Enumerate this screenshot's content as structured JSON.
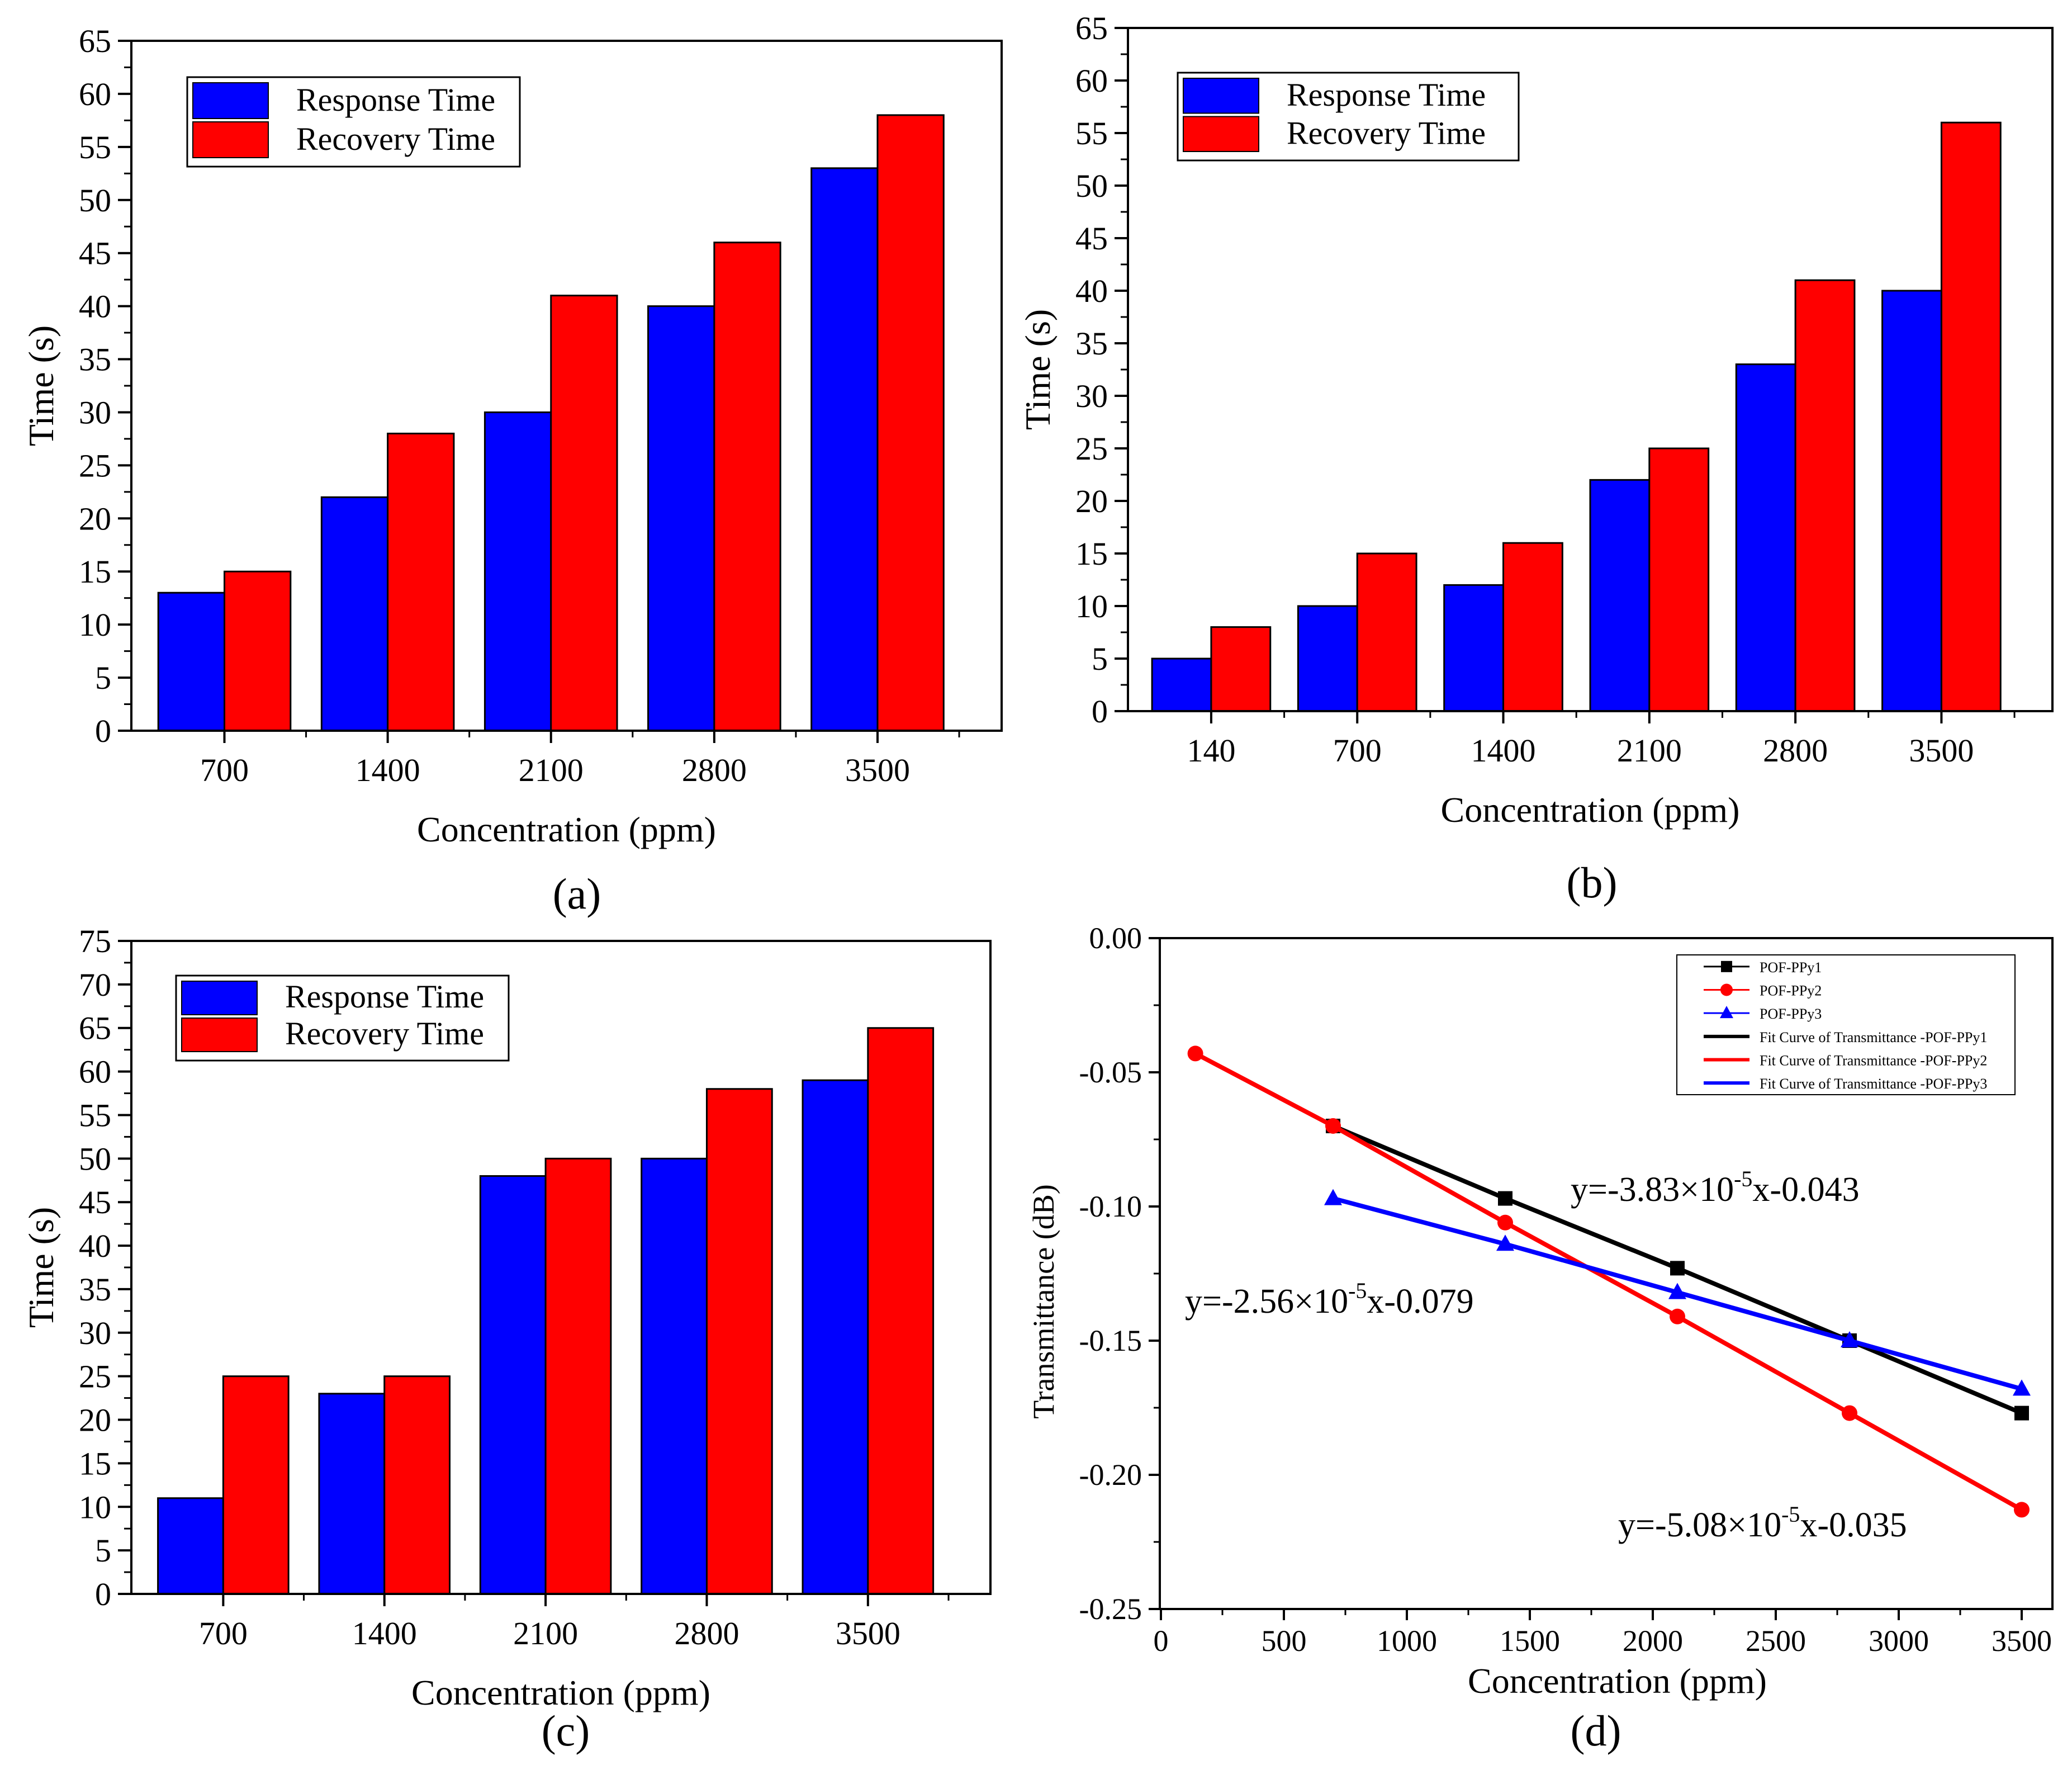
{
  "chart_data": [
    {
      "panel_label": "(a)",
      "type": "bar",
      "categories": [
        "700",
        "1400",
        "2100",
        "2800",
        "3500"
      ],
      "series": [
        {
          "name": "Response Time",
          "color": "#0000ff",
          "values": [
            13,
            22,
            30,
            40,
            53
          ]
        },
        {
          "name": "Recovery Time",
          "color": "#ff0000",
          "values": [
            15,
            28,
            41,
            46,
            58
          ]
        }
      ],
      "xlabel": "Concentration (ppm)",
      "ylabel": "Time (s)",
      "ylim": [
        0,
        65
      ],
      "ytick_step": 5,
      "yticks": [
        "0",
        "5",
        "10",
        "15",
        "20",
        "25",
        "30",
        "35",
        "40",
        "45",
        "50",
        "55",
        "60",
        "65"
      ],
      "legend": "top-left"
    },
    {
      "panel_label": "(b)",
      "type": "bar",
      "categories": [
        "140",
        "700",
        "1400",
        "2100",
        "2800",
        "3500"
      ],
      "series": [
        {
          "name": "Response Time",
          "color": "#0000ff",
          "values": [
            5,
            10,
            12,
            22,
            33,
            40
          ]
        },
        {
          "name": "Recovery Time",
          "color": "#ff0000",
          "values": [
            8,
            15,
            16,
            25,
            41,
            56
          ]
        }
      ],
      "xlabel": "Concentration (ppm)",
      "ylabel": "Time (s)",
      "ylim": [
        0,
        65
      ],
      "ytick_step": 5,
      "yticks": [
        "0",
        "5",
        "10",
        "15",
        "20",
        "25",
        "30",
        "35",
        "40",
        "45",
        "50",
        "55",
        "60",
        "65"
      ],
      "legend": "top-left"
    },
    {
      "panel_label": "(c)",
      "type": "bar",
      "categories": [
        "700",
        "1400",
        "2100",
        "2800",
        "3500"
      ],
      "series": [
        {
          "name": "Response Time",
          "color": "#0000ff",
          "values": [
            11,
            23,
            48,
            50,
            59
          ]
        },
        {
          "name": "Recovery Time",
          "color": "#ff0000",
          "values": [
            25,
            25,
            50,
            58,
            65
          ]
        }
      ],
      "xlabel": "Concentration (ppm)",
      "ylabel": "Time (s)",
      "ylim": [
        0,
        75
      ],
      "ytick_step": 5,
      "yticks": [
        "0",
        "5",
        "10",
        "15",
        "20",
        "25",
        "30",
        "35",
        "40",
        "45",
        "50",
        "55",
        "60",
        "65",
        "70",
        "75"
      ],
      "legend": "top-left"
    },
    {
      "panel_label": "(d)",
      "type": "line",
      "series": [
        {
          "name": "POF-PPy1",
          "color": "#000000",
          "marker": "square",
          "x": [
            700,
            1400,
            2100,
            2800,
            3500
          ],
          "y": [
            -0.07,
            -0.097,
            -0.123,
            -0.15,
            -0.177
          ]
        },
        {
          "name": "POF-PPy2",
          "color": "#ff0000",
          "marker": "circle",
          "x": [
            140,
            700,
            1400,
            2100,
            2800,
            3500
          ],
          "y": [
            -0.043,
            -0.07,
            -0.106,
            -0.141,
            -0.177,
            -0.213
          ]
        },
        {
          "name": "POF-PPy3",
          "color": "#0000ff",
          "marker": "triangle",
          "x": [
            700,
            1400,
            2100,
            2800,
            3500
          ],
          "y": [
            -0.097,
            -0.114,
            -0.132,
            -0.15,
            -0.168
          ]
        }
      ],
      "fits": [
        {
          "name": "Fit Curve of Transmittance -POF-PPy1",
          "color": "#000000"
        },
        {
          "name": "Fit Curve of Transmittance -POF-PPy2",
          "color": "#ff0000"
        },
        {
          "name": "Fit Curve of Transmittance -POF-PPy3",
          "color": "#0000ff"
        }
      ],
      "annotations": [
        {
          "base": "y=-3.83",
          "times": "×",
          "mant": "10",
          "exp": "-5",
          "tail": "x-0.043"
        },
        {
          "base": "y=-2.56",
          "times": "×",
          "mant": "10",
          "exp": "-5",
          "tail": "x-0.079"
        },
        {
          "base": "y=-5.08",
          "times": "×",
          "mant": "10",
          "exp": "-5",
          "tail": "x-0.035"
        }
      ],
      "xlabel": "Concentration (ppm)",
      "ylabel": "Transmittance (dB)",
      "xlim": [
        0,
        3500
      ],
      "ylim": [
        -0.25,
        0.0
      ],
      "xticks": [
        "0",
        "500",
        "1000",
        "1500",
        "2000",
        "2500",
        "3000",
        "3500"
      ],
      "yticks": [
        "0.00",
        "-0.05",
        "-0.10",
        "-0.15",
        "-0.20",
        "-0.25"
      ],
      "legend": "top-right"
    }
  ]
}
